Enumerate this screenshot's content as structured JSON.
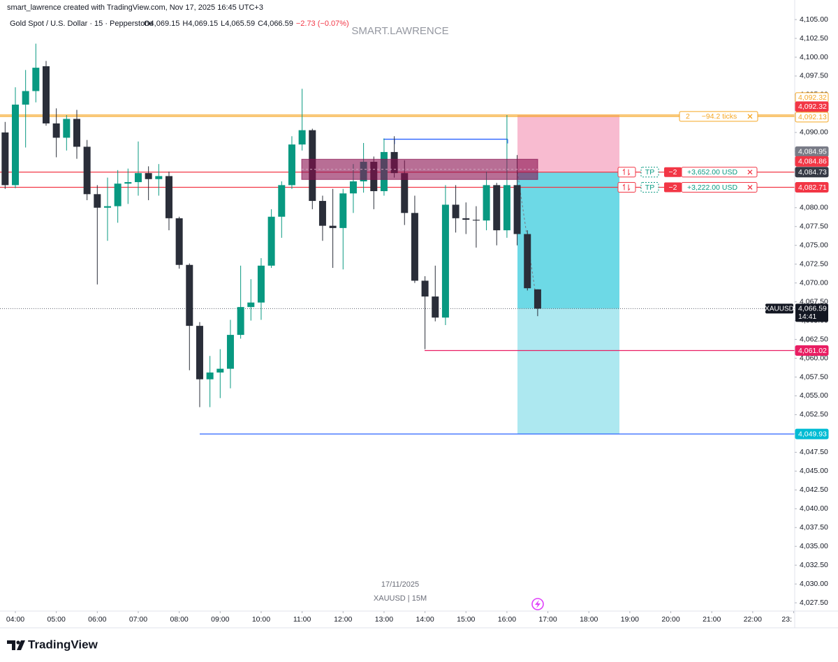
{
  "header": {
    "credit": "smart_lawrence created with TradingView.com, Nov 17, 2025 16:45 UTC+3",
    "brand": "TradingView"
  },
  "chart_data": {
    "type": "candlestick",
    "title": "Gold Spot / U.S. Dollar · 15 · Pepperstone",
    "legend": [
      "O4,069.15",
      "H4,069.15",
      "L4,065.59",
      "C4,066.59",
      "−2.73 (−0.07%)"
    ],
    "watermark": "SMART.LAWRENCE",
    "date_label": "17/11/2025",
    "symbol_label": "XAUUSD | 15M",
    "up_color": "#089981",
    "down_color": "#2a2e39",
    "open": [
      4090,
      4083,
      4093.7,
      4095.5,
      4098.8,
      4091.2,
      4089.3,
      4091.8,
      4088.1,
      4081.8,
      4080,
      4080.2,
      4083.2,
      4083.4,
      4084.6,
      4083.8,
      4084.2,
      4078.6,
      4072.4,
      4064.3,
      4057.2,
      4058.1,
      4058.6,
      4063.1,
      4066.8,
      4067.4,
      4072.3,
      4078.8,
      4083,
      4088.4,
      4090.3,
      4080.9,
      4077.6,
      4077.3,
      4081.9,
      4083.5,
      4086.1,
      4082.2,
      4087.4,
      4084.6,
      4079.3,
      4070.3,
      4068.2,
      4065.4,
      4080.4,
      4078.6,
      4078.4,
      4078.3,
      4083,
      4077,
      4083,
      4076.5,
      4069.15
    ],
    "high": [
      4091.4,
      4096,
      4098.3,
      4101.8,
      4099.5,
      4093.2,
      4092.3,
      4093,
      4089,
      4083,
      4084,
      4085,
      4085.2,
      4088.8,
      4085.5,
      4085.8,
      4084.8,
      4078.8,
      4072.6,
      4064.8,
      4060.3,
      4061.2,
      4065.1,
      4072.3,
      4070.5,
      4073.3,
      4079.8,
      4083.5,
      4089.5,
      4095.8,
      4090.5,
      4081.6,
      4082.5,
      4082.5,
      4085.8,
      4088.6,
      4086.8,
      4089.2,
      4089.5,
      4086.3,
      4081.6,
      4070.9,
      4072.3,
      4083,
      4083,
      4080.7,
      4080.2,
      4084.8,
      4083.3,
      4092.3,
      4087,
      4077,
      4069.15
    ],
    "low": [
      4082.5,
      4082.6,
      4088,
      4094,
      4090.9,
      4086.7,
      4087.6,
      4086.5,
      4081,
      4069.8,
      4075.6,
      4078,
      4080.5,
      4081.6,
      4081,
      4081.6,
      4077,
      4071.9,
      4058.4,
      4053.5,
      4053.5,
      4054.7,
      4056,
      4062.6,
      4065,
      4065.1,
      4072,
      4076,
      4082.5,
      4087.6,
      4079.8,
      4075.6,
      4072,
      4071.8,
      4079.3,
      4082,
      4079.8,
      4081.6,
      4084,
      4077.7,
      4070,
      4061.2,
      4064.9,
      4064.4,
      4076.7,
      4076.5,
      4074.7,
      4077,
      4075,
      4076,
      4075,
      4069,
      4065.59
    ],
    "close": [
      4083,
      4093.7,
      4095.5,
      4098.6,
      4091.2,
      4089.3,
      4091.8,
      4088.1,
      4081.8,
      4080,
      4080.2,
      4083.2,
      4083.4,
      4084.6,
      4083.8,
      4084.2,
      4078.6,
      4072.4,
      4064.3,
      4057.2,
      4058.1,
      4058.6,
      4063.1,
      4066.8,
      4067.4,
      4072.3,
      4078.8,
      4083,
      4088.4,
      4090.3,
      4080.9,
      4077.6,
      4077.3,
      4081.9,
      4083.5,
      4086.1,
      4082.2,
      4087.4,
      4084.6,
      4079.3,
      4070.3,
      4068.2,
      4065.4,
      4080.4,
      4078.6,
      4078.4,
      4078.3,
      4083,
      4077,
      4083,
      4076.5,
      4069.3,
      4066.59
    ],
    "xlim": [
      -0.5,
      77.1
    ],
    "xticks": [
      {
        "value": 1,
        "label": "04:00"
      },
      {
        "value": 5,
        "label": "05:00"
      },
      {
        "value": 9,
        "label": "06:00"
      },
      {
        "value": 13,
        "label": "07:00"
      },
      {
        "value": 17,
        "label": "08:00"
      },
      {
        "value": 21,
        "label": "09:00"
      },
      {
        "value": 25,
        "label": "10:00"
      },
      {
        "value": 29,
        "label": "11:00"
      },
      {
        "value": 33,
        "label": "12:00"
      },
      {
        "value": 37,
        "label": "13:00"
      },
      {
        "value": 41,
        "label": "14:00"
      },
      {
        "value": 45,
        "label": "15:00"
      },
      {
        "value": 49,
        "label": "16:00"
      },
      {
        "value": 53,
        "label": "17:00"
      },
      {
        "value": 57,
        "label": "18:00"
      },
      {
        "value": 61,
        "label": "19:00"
      },
      {
        "value": 65,
        "label": "20:00"
      },
      {
        "value": 69,
        "label": "21:00"
      },
      {
        "value": 73,
        "label": "22:00"
      },
      {
        "value": 77,
        "label": "23:"
      }
    ],
    "ylim": [
      4026.4,
      4107.6
    ],
    "yticks": [
      {
        "value": 4027.5,
        "label": "4,027.50"
      },
      {
        "value": 4030,
        "label": "4,030.00"
      },
      {
        "value": 4032.5,
        "label": "4,032.50"
      },
      {
        "value": 4035,
        "label": "4,035.00"
      },
      {
        "value": 4037.5,
        "label": "4,037.50"
      },
      {
        "value": 4040,
        "label": "4,040.00"
      },
      {
        "value": 4042.5,
        "label": "4,042.50"
      },
      {
        "value": 4045,
        "label": "4,045.00"
      },
      {
        "value": 4047.5,
        "label": "4,047.50"
      },
      {
        "value": 4050,
        "label": "4,050.00"
      },
      {
        "value": 4052.5,
        "label": "4,052.50"
      },
      {
        "value": 4055,
        "label": "4,055.00"
      },
      {
        "value": 4057.5,
        "label": "4,057.50"
      },
      {
        "value": 4060,
        "label": "4,060.00"
      },
      {
        "value": 4062.5,
        "label": "4,062.50"
      },
      {
        "value": 4065,
        "label": "4,065.00"
      },
      {
        "value": 4067.5,
        "label": "4,067.50"
      },
      {
        "value": 4070,
        "label": "4,070.00"
      },
      {
        "value": 4072.5,
        "label": "4,072.50"
      },
      {
        "value": 4075,
        "label": "4,075.00"
      },
      {
        "value": 4077.5,
        "label": "4,077.50"
      },
      {
        "value": 4080,
        "label": "4,080.00"
      },
      {
        "value": 4082.5,
        "label": "4,082.50"
      },
      {
        "value": 4085,
        "label": "4,085.00"
      },
      {
        "value": 4087.5,
        "label": "4,087.50"
      },
      {
        "value": 4090,
        "label": "4,090.00"
      },
      {
        "value": 4092.5,
        "label": "4,092.50"
      },
      {
        "value": 4095,
        "label": "4,095.00"
      },
      {
        "value": 4097.5,
        "label": "4,097.50"
      },
      {
        "value": 4100,
        "label": "4,100.00"
      },
      {
        "value": 4102.5,
        "label": "4,102.50"
      },
      {
        "value": 4105,
        "label": "4,105.00"
      }
    ],
    "position": {
      "entry": 4084.73,
      "stop": 4092.32,
      "target": 4049.93,
      "current": 4066.59
    },
    "zone": {
      "top": 4086.44,
      "bottom": 4083.75,
      "color": "#880e4f"
    },
    "lines": [
      {
        "value": 4092.32,
        "color": "#f5a623"
      },
      {
        "value": 4092.13,
        "color": "#f5a623"
      },
      {
        "value": 4084.73,
        "color": "#f23645"
      },
      {
        "value": 4082.71,
        "color": "#f23645"
      },
      {
        "value": 4061.02,
        "color": "#e91e63"
      },
      {
        "value": 4049.93,
        "color": "#2962ff"
      },
      {
        "value": 4089.1,
        "color": "#2962ff"
      }
    ],
    "price_labels": [
      {
        "value": 4092.32,
        "label": "4,092.32",
        "color": "#f5a623",
        "filled": false
      },
      {
        "value": 4092.32,
        "label": "4,092.32",
        "color": "#f23645",
        "filled": true
      },
      {
        "value": 4092.13,
        "label": "4,092.13",
        "color": "#f5a623",
        "filled": false
      },
      {
        "value": 4084.95,
        "label": "4,084.95",
        "color": "#787b86",
        "filled": true
      },
      {
        "value": 4084.86,
        "label": "4,084.86",
        "color": "#f23645",
        "filled": true
      },
      {
        "value": 4084.73,
        "label": "4,084.73",
        "color": "#363a45",
        "filled": true
      },
      {
        "value": 4082.71,
        "label": "4,082.71",
        "color": "#f23645",
        "filled": true
      },
      {
        "value": 4061.02,
        "label": "4,061.02",
        "color": "#e91e63",
        "filled": true
      },
      {
        "value": 4049.93,
        "label": "4,049.93",
        "color": "#00bcd4",
        "filled": true
      }
    ],
    "last_price": {
      "value": 4066.59,
      "label": "4,066.59",
      "symbol": "XAUUSD",
      "countdown": "14:41"
    },
    "orders": [
      {
        "price": 4084.73,
        "type": "TP",
        "qty": "−2",
        "pnl": "+3,652.00 USD"
      },
      {
        "price": 4082.71,
        "type": "TP",
        "qty": "−2",
        "pnl": "+3,222.00 USD"
      }
    ],
    "stop_order": {
      "price": 4092.13,
      "qty": "2",
      "text": "−94.2 ticks"
    }
  }
}
